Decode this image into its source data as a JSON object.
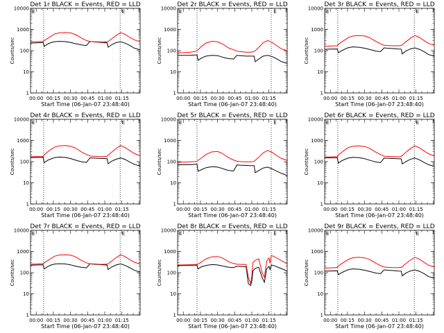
{
  "figure": {
    "layout": "3x3 grid of detector panels",
    "colors": {
      "events": "#000000",
      "lld": "#ff0000",
      "background": "#ffffff"
    },
    "y_axis_scale": "log",
    "x_axis_label": "Start Time (06-Jan-07 23:48:40)",
    "y_axis_label": "Counts/sec",
    "x_tick_labels": [
      "00:00",
      "00:15",
      "00:30",
      "00:45",
      "01:00",
      "01:15"
    ],
    "y_tick_labels": [
      "1",
      "10",
      "100",
      "1000",
      "10000"
    ]
  },
  "chart_data": [
    {
      "type": "line",
      "title": "Det 1r BLACK = Events, RED = LLD",
      "xlabel": "Start Time (06-Jan-07 23:48:40)",
      "ylabel": "Counts/sec",
      "xlim": [
        -5,
        91
      ],
      "ylim": [
        1,
        10000
      ],
      "yscale": "log",
      "vlines": [
        6.5,
        73.5
      ],
      "markers": [
        {
          "label": "E",
          "x": 75
        }
      ],
      "x": [
        -5,
        0,
        6,
        7,
        10,
        13,
        16,
        20,
        25,
        30,
        34,
        37,
        40,
        44,
        47,
        50,
        55,
        59,
        62,
        63,
        66,
        70,
        74,
        78,
        82,
        86,
        91
      ],
      "series": [
        {
          "name": "Events",
          "color": "#000000",
          "values": [
            230,
            235,
            240,
            160,
            205,
            240,
            265,
            275,
            268,
            245,
            215,
            200,
            185,
            175,
            270,
            262,
            250,
            240,
            235,
            145,
            190,
            240,
            265,
            225,
            175,
            130,
            110
          ]
        },
        {
          "name": "LLD",
          "color": "#ff0000",
          "values": [
            260,
            265,
            275,
            300,
            380,
            480,
            610,
            690,
            720,
            690,
            590,
            480,
            380,
            300,
            270,
            265,
            258,
            255,
            260,
            270,
            360,
            520,
            720,
            580,
            420,
            320,
            260
          ]
        }
      ]
    },
    {
      "type": "line",
      "title": "Det 2r BLACK = Events, RED = LLD",
      "xlabel": "Start Time (06-Jan-07 23:48:40)",
      "ylabel": "Counts/sec",
      "xlim": [
        -5,
        91
      ],
      "ylim": [
        1,
        10000
      ],
      "yscale": "log",
      "vlines": [
        12,
        77
      ],
      "markers": [
        {
          "label": "E",
          "x": 79
        }
      ],
      "x": [
        -5,
        0,
        6,
        10,
        12,
        13,
        16,
        20,
        25,
        30,
        34,
        37,
        40,
        44,
        47,
        50,
        55,
        59,
        62,
        63,
        66,
        70,
        74,
        78,
        82,
        86,
        91
      ],
      "series": [
        {
          "name": "Events",
          "color": "#000000",
          "values": [
            60,
            60,
            60,
            62,
            62,
            35,
            45,
            55,
            60,
            58,
            50,
            45,
            42,
            40,
            60,
            58,
            55,
            55,
            55,
            30,
            40,
            55,
            60,
            52,
            40,
            30,
            25
          ]
        },
        {
          "name": "LLD",
          "color": "#ff0000",
          "values": [
            80,
            80,
            85,
            90,
            100,
            110,
            160,
            230,
            280,
            260,
            210,
            170,
            130,
            110,
            95,
            90,
            85,
            85,
            90,
            100,
            140,
            240,
            300,
            240,
            170,
            120,
            100
          ]
        }
      ]
    },
    {
      "type": "line",
      "title": "Det 3r BLACK = Events, RED = LLD",
      "xlabel": "Start Time (06-Jan-07 23:48:40)",
      "ylabel": "Counts/sec",
      "xlim": [
        -5,
        91
      ],
      "ylim": [
        1,
        10000
      ],
      "yscale": "log",
      "vlines": [
        6.5,
        73.5
      ],
      "markers": [
        {
          "label": "E",
          "x": 75
        }
      ],
      "x": [
        -5,
        0,
        6,
        7,
        10,
        13,
        16,
        20,
        25,
        30,
        34,
        37,
        40,
        44,
        47,
        50,
        55,
        59,
        62,
        63,
        66,
        70,
        74,
        78,
        82,
        86,
        91
      ],
      "series": [
        {
          "name": "Events",
          "color": "#000000",
          "values": [
            115,
            118,
            120,
            80,
            100,
            120,
            140,
            150,
            145,
            130,
            115,
            105,
            95,
            90,
            135,
            130,
            125,
            120,
            118,
            70,
            95,
            120,
            135,
            115,
            90,
            65,
            55
          ]
        },
        {
          "name": "LLD",
          "color": "#ff0000",
          "values": [
            160,
            165,
            170,
            200,
            260,
            330,
            420,
            500,
            520,
            490,
            420,
            340,
            270,
            210,
            180,
            175,
            170,
            170,
            175,
            190,
            260,
            380,
            520,
            420,
            300,
            220,
            180
          ]
        }
      ]
    },
    {
      "type": "line",
      "title": "Det 4r BLACK = Events, RED = LLD",
      "xlabel": "Start Time (06-Jan-07 23:48:40)",
      "ylabel": "Counts/sec",
      "xlim": [
        -5,
        91
      ],
      "ylim": [
        1,
        10000
      ],
      "yscale": "log",
      "vlines": [
        6.5,
        73.5
      ],
      "markers": [
        {
          "label": "E",
          "x": 75
        }
      ],
      "x": [
        -5,
        0,
        6,
        7,
        10,
        13,
        16,
        20,
        25,
        30,
        34,
        37,
        40,
        44,
        47,
        50,
        55,
        59,
        62,
        63,
        66,
        70,
        74,
        78,
        82,
        86,
        91
      ],
      "series": [
        {
          "name": "Events",
          "color": "#000000",
          "values": [
            155,
            158,
            160,
            90,
            115,
            135,
            155,
            165,
            160,
            140,
            120,
            108,
            98,
            92,
            150,
            148,
            142,
            140,
            138,
            80,
            105,
            130,
            150,
            125,
            95,
            75,
            62
          ]
        },
        {
          "name": "LLD",
          "color": "#ff0000",
          "values": [
            170,
            172,
            175,
            210,
            290,
            380,
            480,
            560,
            580,
            540,
            450,
            360,
            280,
            220,
            185,
            180,
            175,
            172,
            178,
            200,
            280,
            420,
            580,
            460,
            330,
            240,
            190
          ]
        }
      ]
    },
    {
      "type": "line",
      "title": "Det 5r BLACK = Events, RED = LLD",
      "xlabel": "Start Time (06-Jan-07 23:48:40)",
      "ylabel": "Counts/sec",
      "xlim": [
        -5,
        91
      ],
      "ylim": [
        1,
        10000
      ],
      "yscale": "log",
      "vlines": [
        12,
        77
      ],
      "markers": [
        {
          "label": "E",
          "x": 79
        }
      ],
      "x": [
        -5,
        0,
        6,
        10,
        12,
        13,
        16,
        20,
        25,
        30,
        34,
        37,
        40,
        44,
        47,
        50,
        55,
        59,
        62,
        63,
        66,
        70,
        74,
        78,
        82,
        86,
        91
      ],
      "series": [
        {
          "name": "Events",
          "color": "#000000",
          "values": [
            70,
            72,
            72,
            75,
            75,
            35,
            42,
            52,
            58,
            55,
            48,
            42,
            38,
            36,
            70,
            68,
            66,
            65,
            65,
            30,
            38,
            50,
            55,
            45,
            35,
            28,
            22
          ]
        },
        {
          "name": "LLD",
          "color": "#ff0000",
          "values": [
            95,
            95,
            98,
            100,
            105,
            115,
            150,
            220,
            290,
            300,
            250,
            190,
            150,
            120,
            105,
            100,
            98,
            98,
            102,
            115,
            160,
            260,
            340,
            270,
            190,
            140,
            115
          ]
        }
      ]
    },
    {
      "type": "line",
      "title": "Det 6r BLACK = Events, RED = LLD",
      "xlabel": "Start Time (06-Jan-07 23:48:40)",
      "ylabel": "Counts/sec",
      "xlim": [
        -5,
        91
      ],
      "ylim": [
        1,
        10000
      ],
      "yscale": "log",
      "vlines": [
        6.5,
        73.5
      ],
      "markers": [
        {
          "label": "E",
          "x": 75
        }
      ],
      "x": [
        -5,
        0,
        6,
        7,
        10,
        13,
        16,
        20,
        25,
        30,
        34,
        37,
        40,
        44,
        47,
        50,
        55,
        59,
        62,
        63,
        66,
        70,
        74,
        78,
        82,
        86,
        91
      ],
      "series": [
        {
          "name": "Events",
          "color": "#000000",
          "values": [
            150,
            152,
            155,
            85,
            110,
            130,
            150,
            160,
            155,
            138,
            118,
            106,
            96,
            90,
            148,
            145,
            140,
            138,
            135,
            78,
            100,
            128,
            148,
            122,
            92,
            72,
            60
          ]
        },
        {
          "name": "LLD",
          "color": "#ff0000",
          "values": [
            165,
            168,
            172,
            205,
            280,
            370,
            470,
            540,
            560,
            520,
            440,
            350,
            275,
            215,
            182,
            178,
            172,
            170,
            176,
            198,
            275,
            410,
            560,
            450,
            320,
            235,
            185
          ]
        }
      ]
    },
    {
      "type": "line",
      "title": "Det 7r BLACK = Events, RED = LLD",
      "xlabel": "Start Time (06-Jan-07 23:48:40)",
      "ylabel": "Counts/sec",
      "xlim": [
        -5,
        91
      ],
      "ylim": [
        1,
        10000
      ],
      "yscale": "log",
      "vlines": [
        6.5,
        73.5
      ],
      "markers": [
        {
          "label": "E",
          "x": 75
        }
      ],
      "x": [
        -5,
        0,
        6,
        7,
        10,
        13,
        16,
        20,
        25,
        30,
        34,
        37,
        40,
        44,
        47,
        50,
        55,
        59,
        62,
        63,
        66,
        70,
        74,
        78,
        82,
        86,
        91
      ],
      "series": [
        {
          "name": "Events",
          "color": "#000000",
          "values": [
            225,
            230,
            235,
            150,
            195,
            230,
            255,
            265,
            258,
            235,
            205,
            190,
            178,
            168,
            260,
            252,
            242,
            235,
            230,
            140,
            185,
            232,
            258,
            218,
            170,
            128,
            108
          ]
        },
        {
          "name": "LLD",
          "color": "#ff0000",
          "values": [
            250,
            255,
            265,
            290,
            370,
            470,
            600,
            680,
            700,
            670,
            570,
            460,
            370,
            290,
            262,
            258,
            250,
            248,
            252,
            262,
            350,
            510,
            700,
            565,
            410,
            310,
            255
          ]
        }
      ]
    },
    {
      "type": "line",
      "title": "Det 8r BLACK = Events, RED = LLD",
      "xlabel": "Start Time (06-Jan-07 23:48:40)",
      "ylabel": "Counts/sec",
      "xlim": [
        -5,
        91
      ],
      "ylim": [
        1,
        10000
      ],
      "yscale": "log",
      "vlines": [
        12,
        77
      ],
      "markers": [
        {
          "label": "E",
          "x": 79
        }
      ],
      "x": [
        -5,
        0,
        6,
        10,
        12,
        13,
        16,
        20,
        25,
        30,
        34,
        37,
        40,
        44,
        47,
        50,
        55,
        57,
        59,
        60,
        61,
        63,
        66,
        69,
        71,
        73,
        75,
        76,
        77,
        80,
        84,
        88,
        91
      ],
      "series": [
        {
          "name": "Events",
          "color": "#000000",
          "values": [
            215,
            218,
            222,
            226,
            228,
            150,
            190,
            220,
            240,
            232,
            210,
            192,
            180,
            172,
            200,
            195,
            190,
            30,
            25,
            40,
            120,
            160,
            180,
            60,
            35,
            150,
            200,
            140,
            230,
            210,
            170,
            140,
            115
          ]
        },
        {
          "name": "LLD",
          "color": "#ff0000",
          "values": [
            230,
            232,
            236,
            240,
            245,
            255,
            320,
            450,
            560,
            580,
            500,
            400,
            320,
            270,
            250,
            245,
            240,
            60,
            30,
            70,
            300,
            380,
            450,
            100,
            60,
            350,
            500,
            280,
            650,
            560,
            420,
            320,
            260
          ]
        }
      ]
    },
    {
      "type": "line",
      "title": "Det 9r BLACK = Events, RED = LLD",
      "xlabel": "Start Time (06-Jan-07 23:48:40)",
      "ylabel": "Counts/sec",
      "xlim": [
        -5,
        91
      ],
      "ylim": [
        1,
        10000
      ],
      "yscale": "log",
      "vlines": [
        6.5,
        73.5
      ],
      "markers": [
        {
          "label": "E",
          "x": 75
        }
      ],
      "x": [
        -5,
        0,
        6,
        7,
        10,
        13,
        16,
        20,
        25,
        30,
        34,
        37,
        40,
        44,
        47,
        50,
        55,
        59,
        62,
        63,
        66,
        70,
        74,
        78,
        82,
        86,
        91
      ],
      "series": [
        {
          "name": "Events",
          "color": "#000000",
          "values": [
            118,
            120,
            122,
            80,
            100,
            120,
            140,
            150,
            145,
            130,
            115,
            105,
            95,
            90,
            135,
            130,
            125,
            120,
            118,
            70,
            95,
            120,
            135,
            115,
            90,
            65,
            55
          ]
        },
        {
          "name": "LLD",
          "color": "#ff0000",
          "values": [
            165,
            168,
            175,
            205,
            270,
            340,
            430,
            510,
            530,
            500,
            430,
            345,
            275,
            215,
            185,
            178,
            172,
            172,
            178,
            195,
            265,
            390,
            530,
            430,
            305,
            225,
            185
          ]
        }
      ]
    }
  ]
}
